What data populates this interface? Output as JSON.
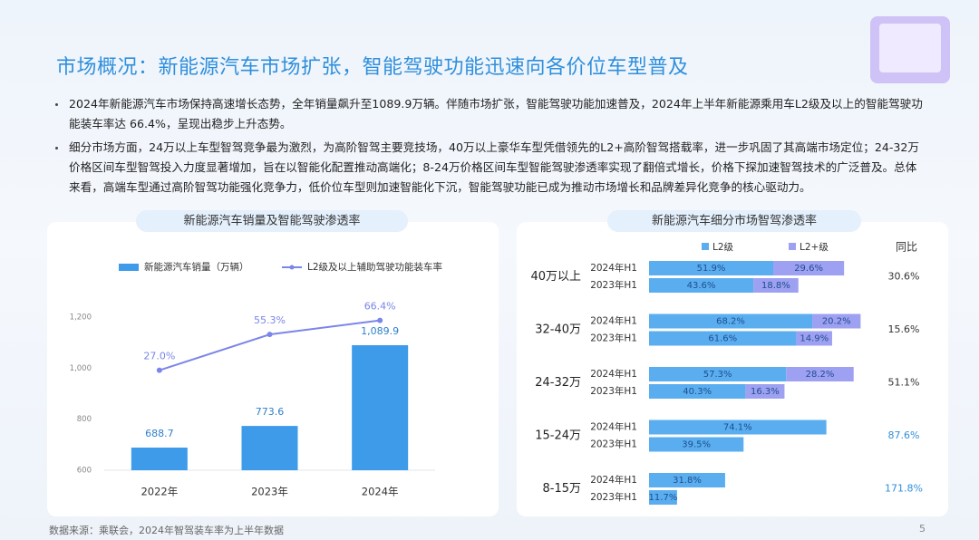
{
  "header": {
    "title": "市场概况：新能源汽车市场扩张，智能驾驶功能迅速向各价位车型普及"
  },
  "bullets": [
    "2024年新能源汽车市场保持高速增长态势，全年销量飙升至1089.9万辆。伴随市场扩张，智能驾驶功能加速普及，2024年上半年新能源乘用车L2级及以上的智能驾驶功能装车率达 66.4%，呈现出稳步上升态势。",
    "细分市场方面，24万以上车型智驾竞争最为激烈，为高阶智驾主要竞技场，40万以上豪华车型凭借领先的L2+高阶智驾搭载率，进一步巩固了其高端市场定位；24-32万价格区间车型智驾投入力度显著增加，旨在以智能化配置推动高端化；8-24万价格区间车型智能驾驶渗透率实现了翻倍式增长，价格下探加速智驾技术的广泛普及。总体来看，高端车型通过高阶智驾功能强化竞争力，低价位车型则加速智能化下沉，智能驾驶功能已成为推动市场增长和品牌差异化竞争的核心驱动力。"
  ],
  "chart_data": [
    {
      "type": "bar",
      "title": "新能源汽车销量及智能驾驶渗透率",
      "categories": [
        "2022年",
        "2023年",
        "2024年"
      ],
      "series": [
        {
          "name": "新能源汽车销量（万辆）",
          "color": "#3d9be9",
          "values": [
            688.7,
            773.6,
            1089.9
          ],
          "value_labels": [
            "688.7",
            "773.6",
            "1,089.9"
          ]
        },
        {
          "name": "L2级及以上辅助驾驶功能装车率",
          "type": "line",
          "axis": "y2",
          "color": "#7b86e8",
          "values": [
            27.0,
            55.3,
            66.4
          ],
          "value_labels": [
            "27.0%",
            "55.3%",
            "66.4%"
          ]
        }
      ],
      "ylim": [
        600,
        1200
      ],
      "yticks": [
        600,
        800,
        {
          "value": 1000,
          "label": "1,000"
        },
        {
          "value": 1200,
          "label": "1,200"
        }
      ],
      "y2lim": [
        -52,
        69
      ]
    },
    {
      "type": "stacked_bar_h",
      "title": "新能源汽车细分市场智驾渗透率",
      "groups": [
        "40万以上",
        "32-40万",
        "24-32万",
        "15-24万",
        "8-15万"
      ],
      "categories": [
        "2024年H1",
        "2023年H1",
        "2024年H1",
        "2023年H1",
        "2024年H1",
        "2023年H1",
        "2024年H1",
        "2023年H1",
        "2024年H1",
        "2023年H1"
      ],
      "series": [
        {
          "name": "L2级",
          "color": "#5aaef0",
          "values": [
            51.9,
            43.6,
            68.2,
            61.6,
            57.3,
            40.3,
            74.1,
            39.5,
            31.8,
            11.7
          ],
          "value_labels": [
            "51.9%",
            "43.6%",
            "68.2%",
            "61.6%",
            "57.3%",
            "40.3%",
            "74.1%",
            "39.5%",
            "31.8%",
            "11.7%"
          ]
        },
        {
          "name": "L2+级",
          "color": "#9ea0f2",
          "values": [
            29.6,
            18.8,
            20.2,
            14.9,
            28.2,
            16.3,
            null,
            null,
            null,
            null
          ],
          "value_labels": [
            "29.6%",
            "18.8%",
            "20.2%",
            "14.9%",
            "28.2%",
            "16.3%",
            null,
            null,
            null,
            null
          ]
        }
      ],
      "xlim": [
        0,
        100
      ],
      "yoy_title": "同比",
      "yoy": [
        30.6,
        15.6,
        51.1,
        87.6,
        171.8
      ],
      "yoy_labels": [
        "30.6%",
        "15.6%",
        "51.1%",
        "87.6%",
        "171.8%"
      ],
      "yoy_colors": [
        "#333333",
        "#333333",
        "#333333",
        "#2f8fdc",
        "#2f8fdc"
      ]
    }
  ],
  "footer": {
    "source": "数据来源：乘联会，2024年智驾装车率为上半年数据",
    "page_number": 5
  }
}
